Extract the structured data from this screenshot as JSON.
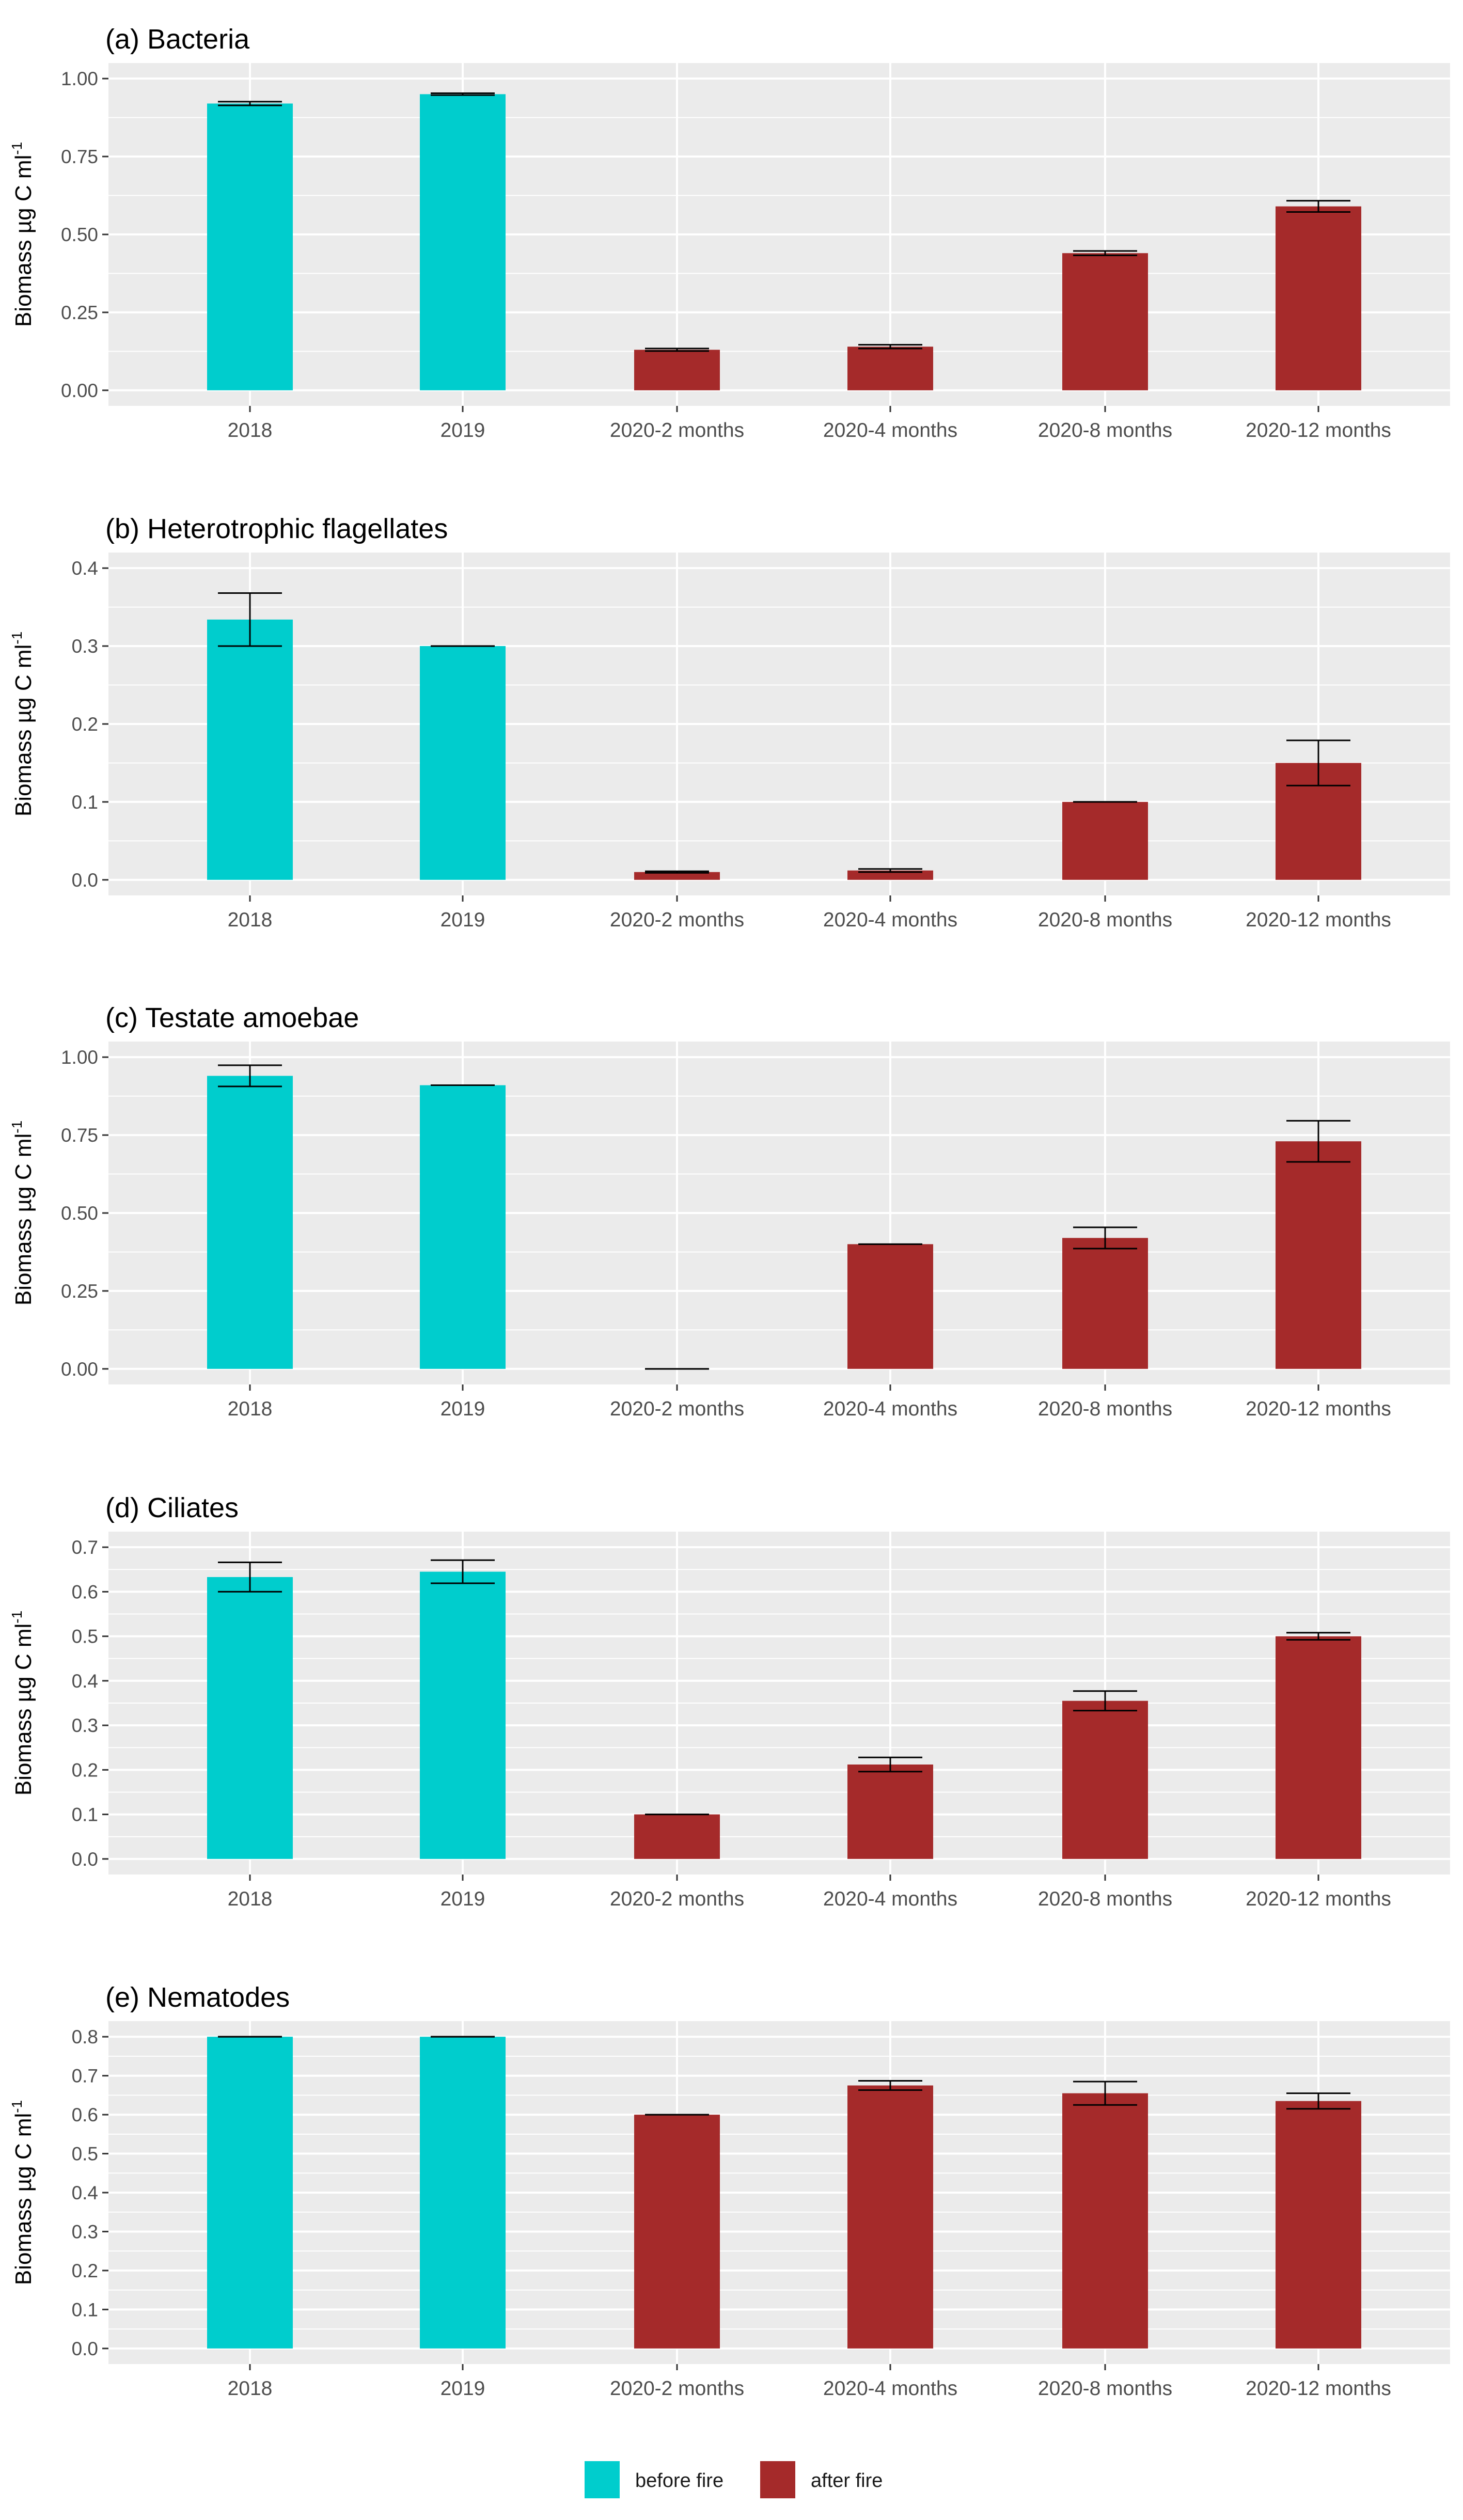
{
  "legend": {
    "items": [
      {
        "label": "before fire",
        "color": "#00CDCD"
      },
      {
        "label": "after fire",
        "color": "#A52A2A"
      }
    ],
    "placement": "bottom"
  },
  "ylabel_main": "Biomass µg C ml",
  "ylabel_sup": "-1",
  "chart_data": [
    {
      "type": "bar",
      "title": "(a) Bacteria",
      "xlabel": "",
      "ylabel": "Biomass µg C ml-1",
      "categories": [
        "2018",
        "2019",
        "2020-2 months",
        "2020-4 months",
        "2020-8 months",
        "2020-12 months"
      ],
      "groups": [
        "before fire",
        "before fire",
        "after fire",
        "after fire",
        "after fire",
        "after fire"
      ],
      "values": [
        0.92,
        0.95,
        0.13,
        0.14,
        0.44,
        0.59
      ],
      "errors": [
        0.006,
        0.003,
        0.004,
        0.006,
        0.007,
        0.018
      ],
      "ylim": [
        0,
        1.0
      ],
      "ticks": [
        0,
        0.25,
        0.5,
        0.75,
        1.0
      ],
      "tick_labels": [
        "0.00",
        "0.25",
        "0.50",
        "0.75",
        "1.00"
      ]
    },
    {
      "type": "bar",
      "title": "(b) Heterotrophic flagellates",
      "xlabel": "",
      "ylabel": "Biomass µg C ml-1",
      "categories": [
        "2018",
        "2019",
        "2020-2 months",
        "2020-4 months",
        "2020-8 months",
        "2020-12 months"
      ],
      "groups": [
        "before fire",
        "before fire",
        "after fire",
        "after fire",
        "after fire",
        "after fire"
      ],
      "values": [
        0.334,
        0.3,
        0.01,
        0.012,
        0.1,
        0.15
      ],
      "errors": [
        0.034,
        0,
        0.001,
        0.002,
        0,
        0.029
      ],
      "ylim": [
        0,
        0.4
      ],
      "ticks": [
        0,
        0.1,
        0.2,
        0.3,
        0.4
      ],
      "tick_labels": [
        "0.0",
        "0.1",
        "0.2",
        "0.3",
        "0.4"
      ]
    },
    {
      "type": "bar",
      "title": "(c) Testate amoebae",
      "xlabel": "",
      "ylabel": "Biomass µg C ml-1",
      "categories": [
        "2018",
        "2019",
        "2020-2 months",
        "2020-4 months",
        "2020-8 months",
        "2020-12 months"
      ],
      "groups": [
        "before fire",
        "before fire",
        "after fire",
        "after fire",
        "after fire",
        "after fire"
      ],
      "values": [
        0.94,
        0.91,
        0.0,
        0.4,
        0.42,
        0.73
      ],
      "errors": [
        0.034,
        0,
        0,
        0,
        0.034,
        0.066
      ],
      "ylim": [
        0,
        1.0
      ],
      "ticks": [
        0,
        0.25,
        0.5,
        0.75,
        1.0
      ],
      "tick_labels": [
        "0.00",
        "0.25",
        "0.50",
        "0.75",
        "1.00"
      ]
    },
    {
      "type": "bar",
      "title": "(d) Ciliates",
      "xlabel": "",
      "ylabel": "Biomass µg C ml-1",
      "categories": [
        "2018",
        "2019",
        "2020-2 months",
        "2020-4 months",
        "2020-8 months",
        "2020-12 months"
      ],
      "groups": [
        "before fire",
        "before fire",
        "after fire",
        "after fire",
        "after fire",
        "after fire"
      ],
      "values": [
        0.633,
        0.645,
        0.1,
        0.212,
        0.355,
        0.5
      ],
      "errors": [
        0.033,
        0.026,
        0,
        0.016,
        0.022,
        0.008
      ],
      "ylim": [
        0,
        0.7
      ],
      "ticks": [
        0,
        0.1,
        0.2,
        0.3,
        0.4,
        0.5,
        0.6,
        0.7
      ],
      "tick_labels": [
        "0.0",
        "0.1",
        "0.2",
        "0.3",
        "0.4",
        "0.5",
        "0.6",
        "0.7"
      ]
    },
    {
      "type": "bar",
      "title": "(e) Nematodes",
      "xlabel": "",
      "ylabel": "Biomass µg C ml-1",
      "categories": [
        "2018",
        "2019",
        "2020-2 months",
        "2020-4 months",
        "2020-8 months",
        "2020-12 months"
      ],
      "groups": [
        "before fire",
        "before fire",
        "after fire",
        "after fire",
        "after fire",
        "after fire"
      ],
      "values": [
        0.8,
        0.8,
        0.6,
        0.675,
        0.655,
        0.635
      ],
      "errors": [
        0,
        0,
        0,
        0.012,
        0.03,
        0.02
      ],
      "ylim": [
        0,
        0.8
      ],
      "ticks": [
        0,
        0.1,
        0.2,
        0.3,
        0.4,
        0.5,
        0.6,
        0.7,
        0.8
      ],
      "tick_labels": [
        "0.0",
        "0.1",
        "0.2",
        "0.3",
        "0.4",
        "0.5",
        "0.6",
        "0.7",
        "0.8"
      ]
    }
  ]
}
